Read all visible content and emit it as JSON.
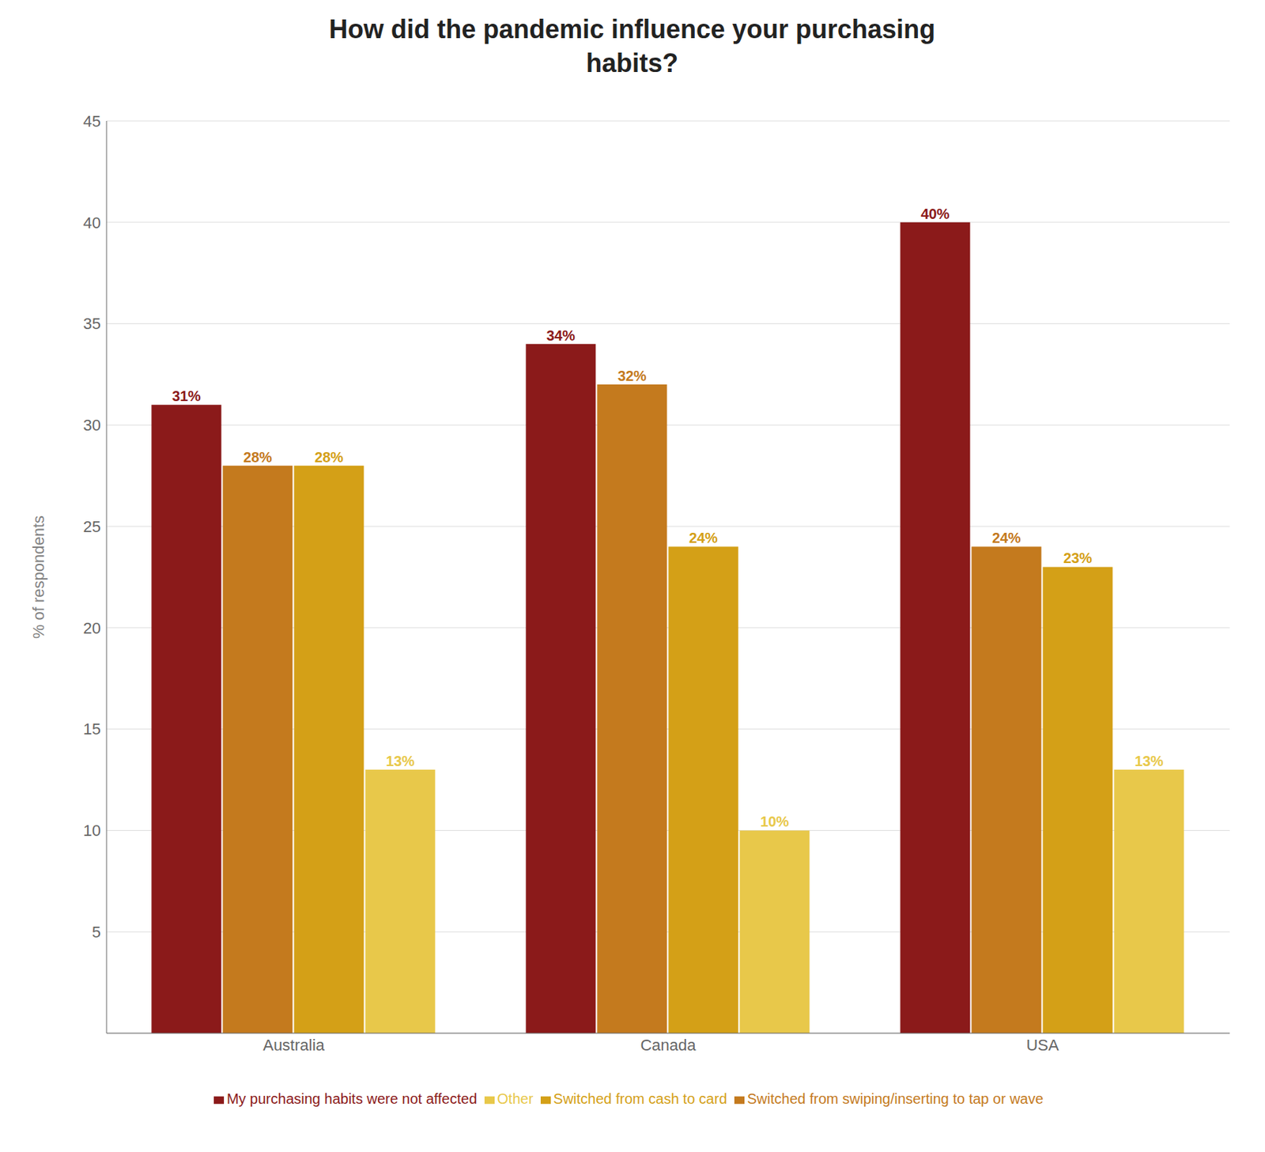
{
  "chart_data": {
    "type": "bar",
    "title": "How did the pandemic influence your purchasing\nhabits?",
    "ylabel": "% of respondents",
    "categories": [
      "Australia",
      "Canada",
      "USA"
    ],
    "series": [
      {
        "name": "My purchasing habits were not affected",
        "color": "#8B1A1A",
        "values": [
          31,
          34,
          40
        ],
        "value_labels": [
          "31%",
          "34%",
          "40%"
        ]
      },
      {
        "name": "Switched from swiping/inserting to tap or wave",
        "color": "#C47A1E",
        "values": [
          28,
          32,
          24
        ],
        "value_labels": [
          "28%",
          "32%",
          "24%"
        ]
      },
      {
        "name": "Switched from cash to card",
        "color": "#D4A017",
        "values": [
          28,
          24,
          23
        ],
        "value_labels": [
          "28%",
          "24%",
          "23%"
        ]
      },
      {
        "name": "Other",
        "color": "#E8C84A",
        "values": [
          13,
          10,
          13
        ],
        "value_labels": [
          "13%",
          "10%",
          "13%"
        ]
      }
    ],
    "ylim": [
      0,
      45
    ],
    "yticks": [
      5,
      10,
      15,
      20,
      25,
      30,
      35,
      40,
      45
    ],
    "grid": true,
    "data_labels": true,
    "legend": "bottom"
  }
}
